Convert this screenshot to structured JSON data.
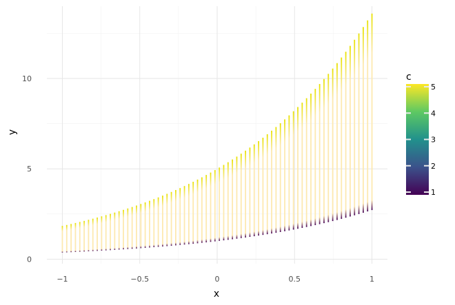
{
  "chart_data": {
    "type": "line",
    "title": "",
    "xlabel": "x",
    "ylabel": "y",
    "xlim": [
      -1.1,
      1.1
    ],
    "ylim": [
      -0.25,
      14.0
    ],
    "x_ticks": [
      -1,
      -0.5,
      0,
      0.5,
      1
    ],
    "x_tick_labels": [
      "−1",
      "−0.5",
      "0",
      "0.5",
      "1"
    ],
    "y_ticks": [
      0,
      5,
      10
    ],
    "y_tick_labels": [
      "0",
      "5",
      "10"
    ],
    "grid": true,
    "background": "white",
    "description_of_marks": "vertical line segments at each x, colored along their length by c from 1 (bottom) to 5 (top)",
    "segments": {
      "x_start": -1,
      "x_end": 1,
      "count": 72,
      "lower_curve": "y = e^x",
      "upper_curve": "y = 5 * e^x",
      "c_range": [
        1,
        5
      ]
    },
    "legend": {
      "title": "c",
      "type": "colorbar",
      "placement": "right",
      "min": 1,
      "max": 5,
      "ticks": [
        1,
        2,
        3,
        4,
        5
      ],
      "tick_labels": [
        "1",
        "2",
        "3",
        "4",
        "5"
      ],
      "colormap": "viridis",
      "colors": [
        "#440154",
        "#3b528b",
        "#21918c",
        "#5ec962",
        "#fde725"
      ]
    }
  }
}
